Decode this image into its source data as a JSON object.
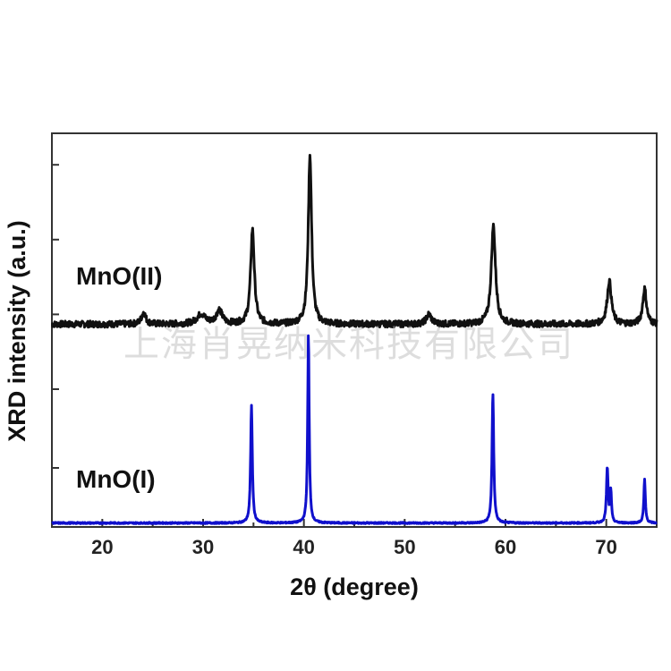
{
  "chart_data": {
    "type": "line",
    "title": "",
    "xlabel": "2θ (degree)",
    "ylabel": "XRD intensity (a.u.)",
    "xlim": [
      15,
      75
    ],
    "ylim": [
      0,
      100
    ],
    "x_ticks": [
      20,
      30,
      40,
      50,
      60,
      70
    ],
    "x_tick_labels": [
      "20",
      "30",
      "40",
      "50",
      "60",
      "70"
    ],
    "y_tick_labels_shown": false,
    "legend": "none",
    "grid": false,
    "series": [
      {
        "name": "MnO(II)",
        "color": "#111111",
        "baseline": 51.5,
        "peaks": [
          {
            "x": 24.1,
            "height": 3.0,
            "width": 0.25
          },
          {
            "x": 29.8,
            "height": 2.5,
            "width": 0.5
          },
          {
            "x": 31.6,
            "height": 3.5,
            "width": 0.35
          },
          {
            "x": 34.9,
            "height": 24,
            "width": 0.22
          },
          {
            "x": 40.6,
            "height": 43,
            "width": 0.2
          },
          {
            "x": 52.4,
            "height": 2.5,
            "width": 0.3
          },
          {
            "x": 58.8,
            "height": 25,
            "width": 0.25
          },
          {
            "x": 70.3,
            "height": 11,
            "width": 0.25
          },
          {
            "x": 73.8,
            "height": 9,
            "width": 0.22
          }
        ]
      },
      {
        "name": "MnO(I)",
        "color": "#1010cc",
        "baseline": 1.0,
        "peaks": [
          {
            "x": 34.8,
            "height": 30,
            "width": 0.1
          },
          {
            "x": 40.45,
            "height": 48,
            "width": 0.09
          },
          {
            "x": 58.75,
            "height": 33,
            "width": 0.1
          },
          {
            "x": 70.1,
            "height": 14,
            "width": 0.1
          },
          {
            "x": 70.45,
            "height": 8,
            "width": 0.08
          },
          {
            "x": 73.8,
            "height": 11,
            "width": 0.09
          }
        ]
      }
    ],
    "annotations": {
      "upper_label": "MnO(II)",
      "lower_label": "MnO(I)"
    }
  },
  "watermark": "上海肖晃纳米科技有限公司"
}
